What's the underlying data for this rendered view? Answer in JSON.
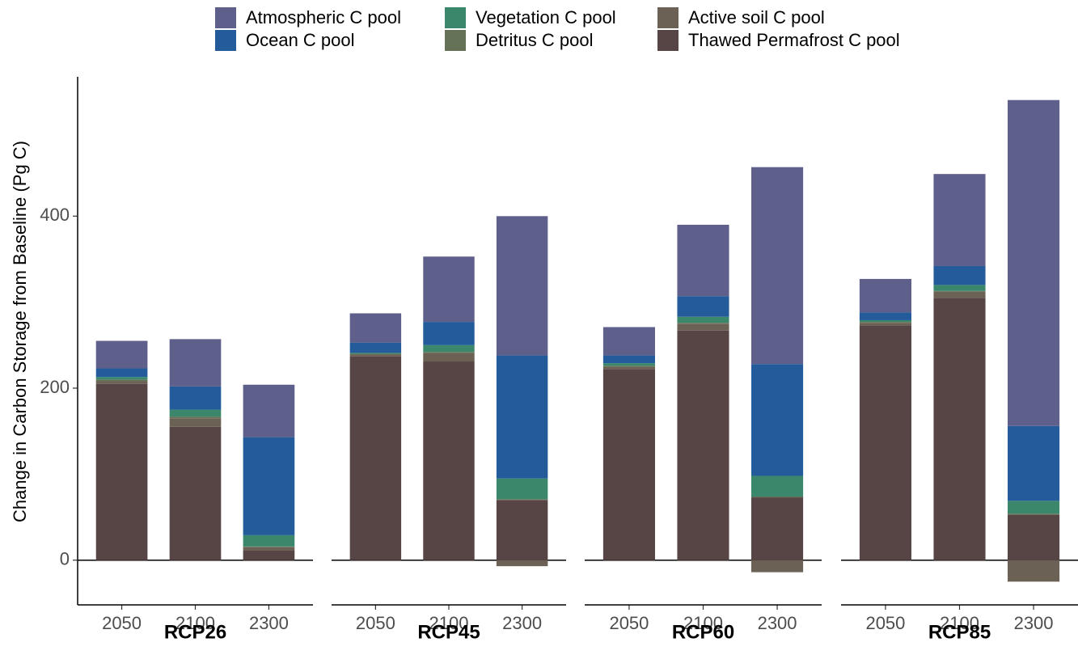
{
  "chart_data": {
    "type": "bar",
    "stacked": true,
    "ylabel": "Change in Carbon Storage from Baseline (Pg C)",
    "ylim": [
      -52,
      562
    ],
    "yticks": [
      0,
      200,
      400
    ],
    "series": [
      {
        "name": "Atmospheric C pool",
        "color": "#5e5f8a"
      },
      {
        "name": "Ocean C pool",
        "color": "#245c9b"
      },
      {
        "name": "Vegetation C pool",
        "color": "#3b876c"
      },
      {
        "name": "Detritus C pool",
        "color": "#667258"
      },
      {
        "name": "Active soil C pool",
        "color": "#6c6155"
      },
      {
        "name": "Thawed Permafrost C pool",
        "color": "#574545"
      }
    ],
    "panels": [
      {
        "title": "RCP26",
        "categories": [
          "2050",
          "2100",
          "2300"
        ],
        "series": [
          {
            "values": [
              32,
              55,
              61
            ]
          },
          {
            "values": [
              10,
              27,
              114
            ]
          },
          {
            "values": [
              3,
              8,
              13
            ]
          },
          {
            "values": [
              2,
              2,
              1
            ]
          },
          {
            "values": [
              3,
              10,
              4
            ]
          },
          {
            "values": [
              205,
              155,
              11
            ]
          }
        ]
      },
      {
        "title": "RCP45",
        "categories": [
          "2050",
          "2100",
          "2300"
        ],
        "series": [
          {
            "values": [
              34,
              76,
              162
            ]
          },
          {
            "values": [
              12,
              27,
              143
            ]
          },
          {
            "values": [
              1,
              8,
              24
            ]
          },
          {
            "values": [
              1,
              1,
              1
            ]
          },
          {
            "values": [
              2,
              10,
              -7
            ]
          },
          {
            "values": [
              237,
              231,
              70
            ]
          }
        ]
      },
      {
        "title": "RCP60",
        "categories": [
          "2050",
          "2100",
          "2300"
        ],
        "series": [
          {
            "values": [
              33,
              83,
              229
            ]
          },
          {
            "values": [
              9,
              24,
              130
            ]
          },
          {
            "values": [
              3,
              7,
              24
            ]
          },
          {
            "values": [
              1,
              1,
              1
            ]
          },
          {
            "values": [
              3,
              8,
              -14
            ]
          },
          {
            "values": [
              222,
              267,
              73
            ]
          }
        ]
      },
      {
        "title": "RCP85",
        "categories": [
          "2050",
          "2100",
          "2300"
        ],
        "series": [
          {
            "values": [
              39,
              107,
              379
            ]
          },
          {
            "values": [
              9,
              22,
              87
            ]
          },
          {
            "values": [
              2,
              7,
              15
            ]
          },
          {
            "values": [
              1,
              1,
              1
            ]
          },
          {
            "values": [
              3,
              7,
              -25
            ]
          },
          {
            "values": [
              273,
              305,
              53
            ]
          }
        ]
      }
    ]
  }
}
